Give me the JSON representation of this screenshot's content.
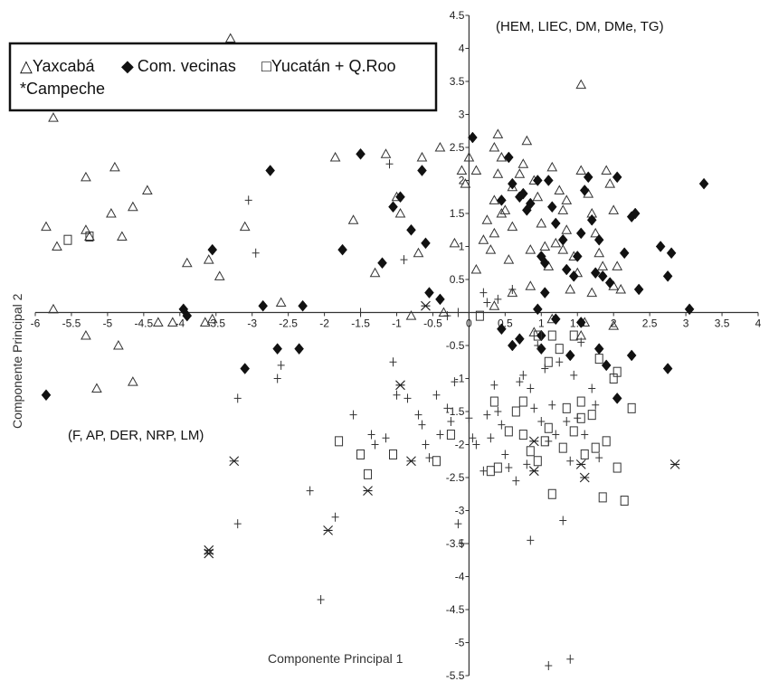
{
  "chart_data": {
    "type": "scatter",
    "xlabel": "Componente Principal 1",
    "ylabel": "Componente Principal 2",
    "xlim": [
      -6,
      4
    ],
    "ylim": [
      -5.5,
      4.5
    ],
    "x_ticks": [
      "-6",
      "-5.5",
      "-5",
      "-4.5",
      "-4",
      "-3.5",
      "-3",
      "-2.5",
      "-2",
      "-1.5",
      "-1",
      "-0.5",
      "0",
      "0.5",
      "1",
      "1.5",
      "2",
      "2.5",
      "3",
      "3.5",
      "4"
    ],
    "y_ticks": [
      "4.5",
      "4",
      "3.5",
      "3",
      "2.5",
      "2",
      "1.5",
      "1",
      "0.5",
      "0",
      "-0.5",
      "-1",
      "-1.5",
      "-2",
      "-2.5",
      "-3",
      "-3.5",
      "-4",
      "-4.5",
      "-5",
      "-5.5"
    ],
    "annotations": [
      "(HEM, LIEC, DM, DMe, TG)",
      "(F, AP, DER, NRP, LM)"
    ],
    "legend": {
      "placement": "top-left",
      "items": [
        {
          "symbol": "△",
          "label": "Yaxcabá"
        },
        {
          "symbol": "◆",
          "label": "Com. vecinas"
        },
        {
          "symbol": "□",
          "label": "Yucatán + Q.Roo"
        },
        {
          "symbol": "*",
          "label": "Campeche"
        }
      ]
    },
    "series": [
      {
        "name": "Yaxcabá",
        "marker": "triangle",
        "points": [
          [
            -3.3,
            4.15
          ],
          [
            -5.75,
            2.95
          ],
          [
            -5.85,
            1.3
          ],
          [
            -5.7,
            1.0
          ],
          [
            -5.3,
            2.05
          ],
          [
            -5.3,
            1.25
          ],
          [
            -5.25,
            1.15
          ],
          [
            -4.9,
            2.2
          ],
          [
            -4.8,
            1.15
          ],
          [
            -4.95,
            1.5
          ],
          [
            -4.65,
            1.6
          ],
          [
            -4.45,
            1.85
          ],
          [
            -5.75,
            0.05
          ],
          [
            -5.3,
            -0.35
          ],
          [
            -4.85,
            -0.5
          ],
          [
            -5.15,
            -1.15
          ],
          [
            -4.65,
            -1.05
          ],
          [
            -3.9,
            0.75
          ],
          [
            -3.6,
            0.8
          ],
          [
            -3.45,
            0.55
          ],
          [
            -3.55,
            -0.1
          ],
          [
            -3.65,
            -0.15
          ],
          [
            -4.1,
            -0.15
          ],
          [
            -4.3,
            -0.15
          ],
          [
            -3.1,
            1.3
          ],
          [
            -2.6,
            0.15
          ],
          [
            -1.85,
            2.35
          ],
          [
            -1.6,
            1.4
          ],
          [
            -1.3,
            0.6
          ],
          [
            -1.15,
            2.4
          ],
          [
            -1.0,
            1.75
          ],
          [
            -0.95,
            1.5
          ],
          [
            -0.65,
            2.35
          ],
          [
            -0.7,
            0.9
          ],
          [
            -0.4,
            2.5
          ],
          [
            -0.1,
            2.15
          ],
          [
            -0.05,
            1.95
          ],
          [
            -0.2,
            1.05
          ],
          [
            -0.35,
            0.0
          ],
          [
            -0.8,
            -0.05
          ],
          [
            0.0,
            2.35
          ],
          [
            0.1,
            2.15
          ],
          [
            0.25,
            1.4
          ],
          [
            0.2,
            1.1
          ],
          [
            0.1,
            0.65
          ],
          [
            0.35,
            2.5
          ],
          [
            0.4,
            2.7
          ],
          [
            0.45,
            2.35
          ],
          [
            0.4,
            2.1
          ],
          [
            0.35,
            1.7
          ],
          [
            0.45,
            1.5
          ],
          [
            0.35,
            1.2
          ],
          [
            0.3,
            0.95
          ],
          [
            0.55,
            0.8
          ],
          [
            0.6,
            1.3
          ],
          [
            0.7,
            2.1
          ],
          [
            0.75,
            2.25
          ],
          [
            0.8,
            2.6
          ],
          [
            0.9,
            2.0
          ],
          [
            0.95,
            1.75
          ],
          [
            1.0,
            1.35
          ],
          [
            1.05,
            1.0
          ],
          [
            1.1,
            0.7
          ],
          [
            0.85,
            0.4
          ],
          [
            0.6,
            0.3
          ],
          [
            0.35,
            0.1
          ],
          [
            1.15,
            2.2
          ],
          [
            1.25,
            1.85
          ],
          [
            1.3,
            1.55
          ],
          [
            1.35,
            1.25
          ],
          [
            1.2,
            1.05
          ],
          [
            1.45,
            0.85
          ],
          [
            1.5,
            0.6
          ],
          [
            1.4,
            0.35
          ],
          [
            1.55,
            2.15
          ],
          [
            1.65,
            1.8
          ],
          [
            1.7,
            1.5
          ],
          [
            1.75,
            1.2
          ],
          [
            1.8,
            0.9
          ],
          [
            1.85,
            0.7
          ],
          [
            1.9,
            2.15
          ],
          [
            1.95,
            1.95
          ],
          [
            2.0,
            1.55
          ],
          [
            2.05,
            0.7
          ],
          [
            2.1,
            0.35
          ],
          [
            2.0,
            0.4
          ],
          [
            2.0,
            -0.2
          ],
          [
            1.55,
            3.45
          ],
          [
            1.3,
            0.95
          ],
          [
            0.85,
            0.95
          ],
          [
            0.6,
            1.9
          ],
          [
            0.5,
            1.55
          ],
          [
            1.55,
            -0.35
          ],
          [
            1.6,
            -0.15
          ],
          [
            0.9,
            -0.3
          ],
          [
            1.15,
            -0.1
          ],
          [
            1.7,
            0.3
          ],
          [
            1.35,
            1.7
          ]
        ]
      },
      {
        "name": "Com. vecinas",
        "marker": "diamond",
        "points": [
          [
            -5.85,
            -1.25
          ],
          [
            -3.95,
            0.05
          ],
          [
            -3.9,
            -0.05
          ],
          [
            -3.55,
            0.95
          ],
          [
            -3.1,
            -0.85
          ],
          [
            -2.75,
            2.15
          ],
          [
            -2.85,
            0.1
          ],
          [
            -2.65,
            -0.55
          ],
          [
            -2.35,
            -0.55
          ],
          [
            -2.3,
            0.1
          ],
          [
            -1.75,
            0.95
          ],
          [
            -1.5,
            2.4
          ],
          [
            -1.2,
            0.75
          ],
          [
            -1.05,
            1.6
          ],
          [
            -0.95,
            1.75
          ],
          [
            -0.65,
            2.15
          ],
          [
            -0.8,
            1.25
          ],
          [
            -0.6,
            1.05
          ],
          [
            -0.55,
            0.3
          ],
          [
            -0.4,
            0.2
          ],
          [
            0.05,
            2.65
          ],
          [
            0.45,
            1.7
          ],
          [
            0.55,
            2.35
          ],
          [
            0.6,
            1.95
          ],
          [
            0.7,
            1.75
          ],
          [
            0.75,
            1.8
          ],
          [
            0.8,
            1.55
          ],
          [
            0.85,
            1.65
          ],
          [
            0.95,
            2.0
          ],
          [
            1.0,
            0.85
          ],
          [
            1.05,
            0.75
          ],
          [
            1.05,
            0.3
          ],
          [
            0.95,
            0.05
          ],
          [
            1.1,
            2.0
          ],
          [
            1.15,
            1.6
          ],
          [
            1.2,
            1.35
          ],
          [
            1.3,
            1.1
          ],
          [
            1.35,
            0.65
          ],
          [
            1.45,
            0.55
          ],
          [
            1.5,
            0.85
          ],
          [
            1.55,
            1.2
          ],
          [
            1.6,
            1.85
          ],
          [
            1.65,
            2.05
          ],
          [
            1.7,
            1.4
          ],
          [
            1.75,
            0.6
          ],
          [
            1.8,
            1.1
          ],
          [
            1.85,
            0.55
          ],
          [
            1.95,
            0.45
          ],
          [
            2.05,
            2.05
          ],
          [
            2.15,
            0.9
          ],
          [
            2.25,
            1.45
          ],
          [
            2.3,
            1.5
          ],
          [
            2.35,
            0.35
          ],
          [
            2.65,
            1.0
          ],
          [
            2.8,
            0.9
          ],
          [
            2.75,
            0.55
          ],
          [
            3.05,
            0.05
          ],
          [
            3.25,
            1.95
          ],
          [
            1.55,
            -0.15
          ],
          [
            1.2,
            -0.1
          ],
          [
            1.0,
            -0.35
          ],
          [
            0.7,
            -0.4
          ],
          [
            0.45,
            -0.25
          ],
          [
            0.6,
            -0.5
          ],
          [
            1.4,
            -0.65
          ],
          [
            1.8,
            -0.55
          ],
          [
            1.9,
            -0.8
          ],
          [
            2.25,
            -0.65
          ],
          [
            2.75,
            -0.85
          ],
          [
            2.05,
            -1.3
          ],
          [
            1.0,
            -0.55
          ]
        ]
      },
      {
        "name": "Yucatán + Q.Roo",
        "marker": "square",
        "points": [
          [
            -5.55,
            1.1
          ],
          [
            -5.25,
            1.15
          ],
          [
            0.15,
            -0.05
          ],
          [
            0.35,
            -1.35
          ],
          [
            -0.25,
            -1.85
          ],
          [
            -0.45,
            -2.25
          ],
          [
            -1.05,
            -2.15
          ],
          [
            -1.5,
            -2.15
          ],
          [
            -1.4,
            -2.45
          ],
          [
            -1.8,
            -1.95
          ],
          [
            0.65,
            -1.5
          ],
          [
            0.55,
            -1.8
          ],
          [
            0.75,
            -1.35
          ],
          [
            0.75,
            -1.85
          ],
          [
            0.85,
            -2.1
          ],
          [
            0.95,
            -2.25
          ],
          [
            1.05,
            -1.95
          ],
          [
            1.1,
            -1.75
          ],
          [
            1.15,
            -2.75
          ],
          [
            1.3,
            -2.05
          ],
          [
            1.35,
            -1.45
          ],
          [
            1.45,
            -1.8
          ],
          [
            1.55,
            -1.35
          ],
          [
            1.55,
            -1.6
          ],
          [
            1.6,
            -2.15
          ],
          [
            1.7,
            -1.55
          ],
          [
            1.75,
            -2.05
          ],
          [
            1.8,
            -0.7
          ],
          [
            1.85,
            -2.8
          ],
          [
            1.9,
            -1.95
          ],
          [
            2.0,
            -1.0
          ],
          [
            2.05,
            -0.9
          ],
          [
            2.05,
            -2.35
          ],
          [
            2.15,
            -2.85
          ],
          [
            2.25,
            -1.45
          ],
          [
            0.95,
            -0.35
          ],
          [
            1.15,
            -0.35
          ],
          [
            1.25,
            -0.55
          ],
          [
            1.1,
            -0.75
          ],
          [
            1.45,
            -0.35
          ],
          [
            0.4,
            -2.35
          ],
          [
            0.3,
            -2.4
          ]
        ]
      },
      {
        "name": "Campeche",
        "marker": "star",
        "points": [
          [
            -3.6,
            -3.65
          ],
          [
            -3.6,
            -3.6
          ],
          [
            -3.25,
            -2.25
          ],
          [
            -1.95,
            -3.3
          ],
          [
            -1.4,
            -2.7
          ],
          [
            -0.95,
            -1.1
          ],
          [
            -0.8,
            -2.25
          ],
          [
            -0.6,
            0.1
          ],
          [
            0.9,
            -1.95
          ],
          [
            0.9,
            -2.4
          ],
          [
            1.55,
            -2.3
          ],
          [
            1.6,
            -2.5
          ],
          [
            2.85,
            -2.3
          ]
        ]
      },
      {
        "name": "",
        "marker": "plus",
        "points": [
          [
            -3.05,
            1.7
          ],
          [
            -2.95,
            0.9
          ],
          [
            -3.2,
            -1.3
          ],
          [
            -3.2,
            -3.2
          ],
          [
            -2.65,
            -1.0
          ],
          [
            -2.6,
            -0.8
          ],
          [
            -2.2,
            -2.7
          ],
          [
            -2.05,
            -4.35
          ],
          [
            -1.85,
            -3.1
          ],
          [
            -1.6,
            -1.55
          ],
          [
            -1.35,
            -1.85
          ],
          [
            -1.3,
            -2.0
          ],
          [
            -1.15,
            -1.9
          ],
          [
            -1.1,
            2.25
          ],
          [
            -1.05,
            -0.75
          ],
          [
            -1.0,
            -1.25
          ],
          [
            -0.9,
            0.8
          ],
          [
            -0.85,
            -1.3
          ],
          [
            -0.7,
            -1.55
          ],
          [
            -0.65,
            -1.7
          ],
          [
            -0.6,
            -2.0
          ],
          [
            -0.55,
            -2.2
          ],
          [
            -0.45,
            -1.25
          ],
          [
            -0.4,
            -1.85
          ],
          [
            -0.3,
            -1.45
          ],
          [
            -0.25,
            -1.65
          ],
          [
            -0.2,
            -1.05
          ],
          [
            -0.15,
            -3.2
          ],
          [
            -0.1,
            -3.5
          ],
          [
            0.0,
            -1.6
          ],
          [
            0.05,
            -1.9
          ],
          [
            0.1,
            -2.0
          ],
          [
            0.2,
            -2.4
          ],
          [
            0.25,
            -1.55
          ],
          [
            0.3,
            -1.9
          ],
          [
            0.35,
            -1.1
          ],
          [
            0.4,
            -1.5
          ],
          [
            0.45,
            -1.7
          ],
          [
            0.5,
            -2.15
          ],
          [
            0.55,
            -2.35
          ],
          [
            0.65,
            -2.55
          ],
          [
            0.7,
            -1.05
          ],
          [
            0.75,
            -0.95
          ],
          [
            0.8,
            -2.3
          ],
          [
            0.85,
            -1.15
          ],
          [
            0.9,
            -1.45
          ],
          [
            0.95,
            -0.5
          ],
          [
            1.0,
            -1.65
          ],
          [
            1.05,
            -0.85
          ],
          [
            1.1,
            -1.95
          ],
          [
            1.15,
            -1.4
          ],
          [
            1.2,
            -1.85
          ],
          [
            1.25,
            -0.75
          ],
          [
            1.3,
            -3.15
          ],
          [
            1.35,
            -1.65
          ],
          [
            1.4,
            -2.25
          ],
          [
            1.45,
            -0.95
          ],
          [
            1.5,
            -1.6
          ],
          [
            1.55,
            -0.45
          ],
          [
            1.6,
            -1.85
          ],
          [
            1.7,
            -1.15
          ],
          [
            1.75,
            -1.4
          ],
          [
            1.8,
            -2.2
          ],
          [
            0.85,
            -3.45
          ],
          [
            1.1,
            -5.35
          ],
          [
            1.4,
            -5.25
          ],
          [
            0.2,
            0.3
          ],
          [
            0.25,
            0.15
          ],
          [
            0.4,
            0.2
          ],
          [
            0.6,
            0.35
          ],
          [
            -0.15,
            0.0
          ],
          [
            -1.5,
            0.0
          ],
          [
            -0.3,
            -0.05
          ]
        ]
      }
    ]
  }
}
